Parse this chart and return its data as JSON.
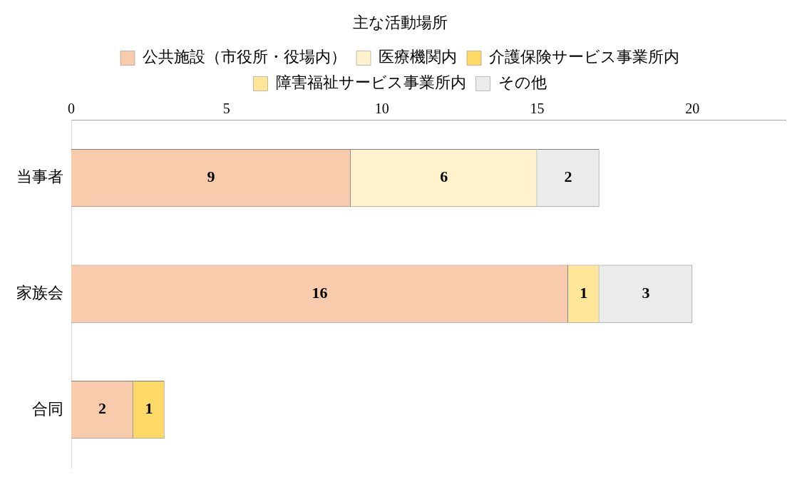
{
  "chart_data": {
    "type": "bar",
    "orientation": "horizontal",
    "stacked": true,
    "title": "主な活動場所",
    "categories": [
      "当事者",
      "家族会",
      "合同"
    ],
    "series": [
      {
        "name": "公共施設（市役所・役場内）",
        "color": "#f8cbad",
        "values": [
          9,
          16,
          2
        ]
      },
      {
        "name": "医療機関内",
        "color": "#fff2cc",
        "values": [
          6,
          null,
          null
        ]
      },
      {
        "name": "介護保険サービス事業所内",
        "color": "#ffd966",
        "values": [
          null,
          null,
          1
        ]
      },
      {
        "name": "障害福祉サービス事業所内",
        "color": "#ffe699",
        "values": [
          null,
          1,
          null
        ]
      },
      {
        "name": "その他",
        "color": "#ebebeb",
        "values": [
          2,
          3,
          null
        ]
      }
    ],
    "xlim": [
      0,
      23
    ],
    "xticks": [
      0,
      5,
      10,
      15,
      20
    ],
    "grid": false,
    "legend": "top",
    "data_labels": true
  }
}
